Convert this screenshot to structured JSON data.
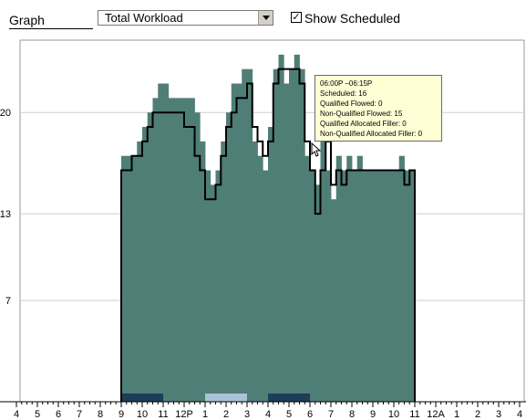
{
  "header": {
    "graph_label": "Graph",
    "select_value": "Total Workload",
    "show_scheduled_label": "Show Scheduled",
    "show_scheduled_checked": true
  },
  "tooltip": {
    "time_range": "06:00P –06:15P",
    "scheduled": "Scheduled: 16",
    "qualified_flowed": "Qualified Flowed: 0",
    "non_qualified_flowed": "Non-Qualified Flowed: 15",
    "qualified_allocated_filler": "Qualified Allocated Filler: 0",
    "non_qualified_allocated_filler": "Non-Qualified Allocated Filler: 0"
  },
  "colors": {
    "workload_fill": "#4f7e76",
    "scheduled_line": "#000000",
    "grid": "#cfcfcf",
    "band_dark": "#1f3c5a",
    "band_light": "#a8c4d8"
  },
  "chart_data": {
    "type": "area",
    "title": "",
    "xlabel": "",
    "ylabel": "",
    "ylim": [
      0,
      25
    ],
    "y_ticks": [
      7,
      13,
      20
    ],
    "x_tick_labels": [
      "4",
      "5",
      "6",
      "7",
      "8",
      "9",
      "10",
      "11",
      "12P",
      "1",
      "2",
      "3",
      "4",
      "5",
      "6",
      "7",
      "8",
      "9",
      "10",
      "11",
      "12A",
      "1",
      "2",
      "3",
      "4"
    ],
    "x_hour_range": [
      4,
      28
    ],
    "series": [
      {
        "interval_hours": 0.25,
        "start_hour": 9,
        "values": [
          17,
          17,
          17,
          18,
          19,
          20,
          21,
          22,
          22,
          21,
          21,
          21,
          21,
          21,
          20,
          18,
          16,
          15,
          16,
          18,
          20,
          22,
          22,
          23,
          23,
          18,
          17,
          16,
          19,
          23,
          24,
          22,
          23,
          24,
          23,
          17,
          16,
          15,
          18,
          16,
          14,
          17,
          16,
          17,
          16,
          17,
          16,
          16,
          16,
          16,
          16,
          16,
          16,
          17,
          16,
          16
        ]
      },
      {
        "interval_hours": 0.25,
        "start_hour": 9,
        "values": [
          16,
          16,
          17,
          17,
          18,
          19,
          20,
          20,
          20,
          20,
          20,
          20,
          19,
          19,
          17,
          16,
          14,
          14,
          15,
          17,
          19,
          20,
          21,
          21,
          22,
          19,
          18,
          17,
          18,
          22,
          23,
          23,
          23,
          23,
          22,
          18,
          16,
          13,
          16,
          18,
          15,
          16,
          15,
          16,
          16,
          16,
          16,
          16,
          16,
          16,
          16,
          16,
          16,
          16,
          15,
          16
        ]
      }
    ],
    "bands": [
      {
        "start_hour": 9,
        "end_hour": 11,
        "color": "#1f3c5a"
      },
      {
        "start_hour": 13,
        "end_hour": 15,
        "color": "#a8c4d8"
      },
      {
        "start_hour": 16,
        "end_hour": 18,
        "color": "#1f3c5a"
      }
    ]
  }
}
